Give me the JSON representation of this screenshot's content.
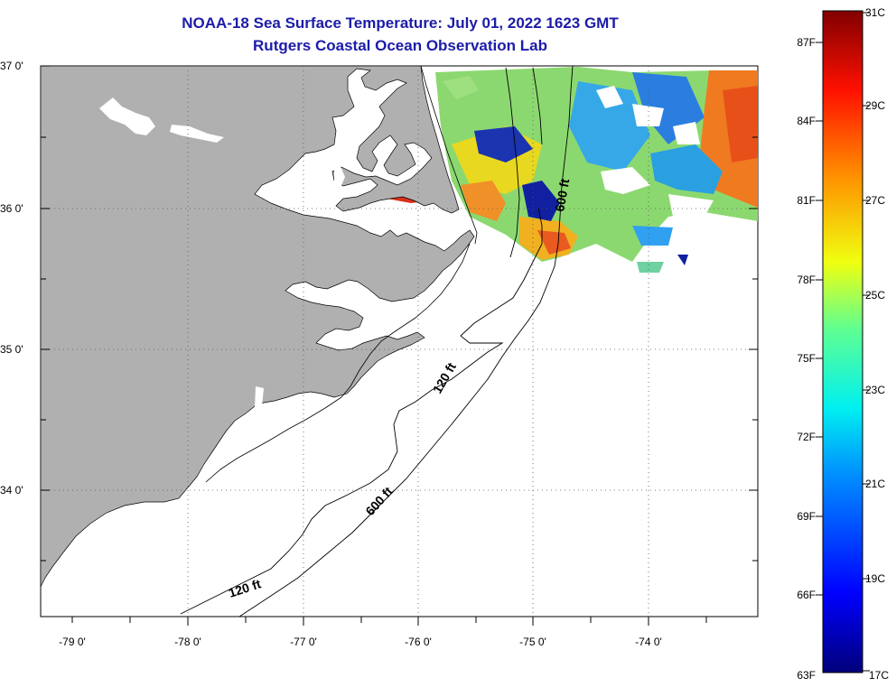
{
  "title": "NOAA-18 Sea Surface Temperature:  July 01, 2022 1623 GMT",
  "subtitle": "Rutgers Coastal Ocean Observation Lab",
  "lat_labels": [
    "37 0'",
    "36 0'",
    "35 0'",
    "34 0'"
  ],
  "lon_labels": [
    "-79 0'",
    "-78 0'",
    "-77 0'",
    "-76 0'",
    "-75 0'",
    "-74 0'"
  ],
  "contour_labels": [
    "600 ft",
    "120 ft",
    "600 ft",
    "120 ft"
  ],
  "colorbar": {
    "fahrenheit": [
      "87F",
      "84F",
      "81F",
      "78F",
      "75F",
      "72F",
      "69F",
      "66F",
      "63F"
    ],
    "celsius": [
      "31C",
      "29C",
      "27C",
      "25C",
      "23C",
      "21C",
      "19C",
      "17C"
    ],
    "range_c": [
      17,
      31
    ]
  },
  "colors": {
    "land": "#b0b0b0",
    "title": "#1c1ca8",
    "warm": "#d83018",
    "cool": "#1828b8"
  }
}
